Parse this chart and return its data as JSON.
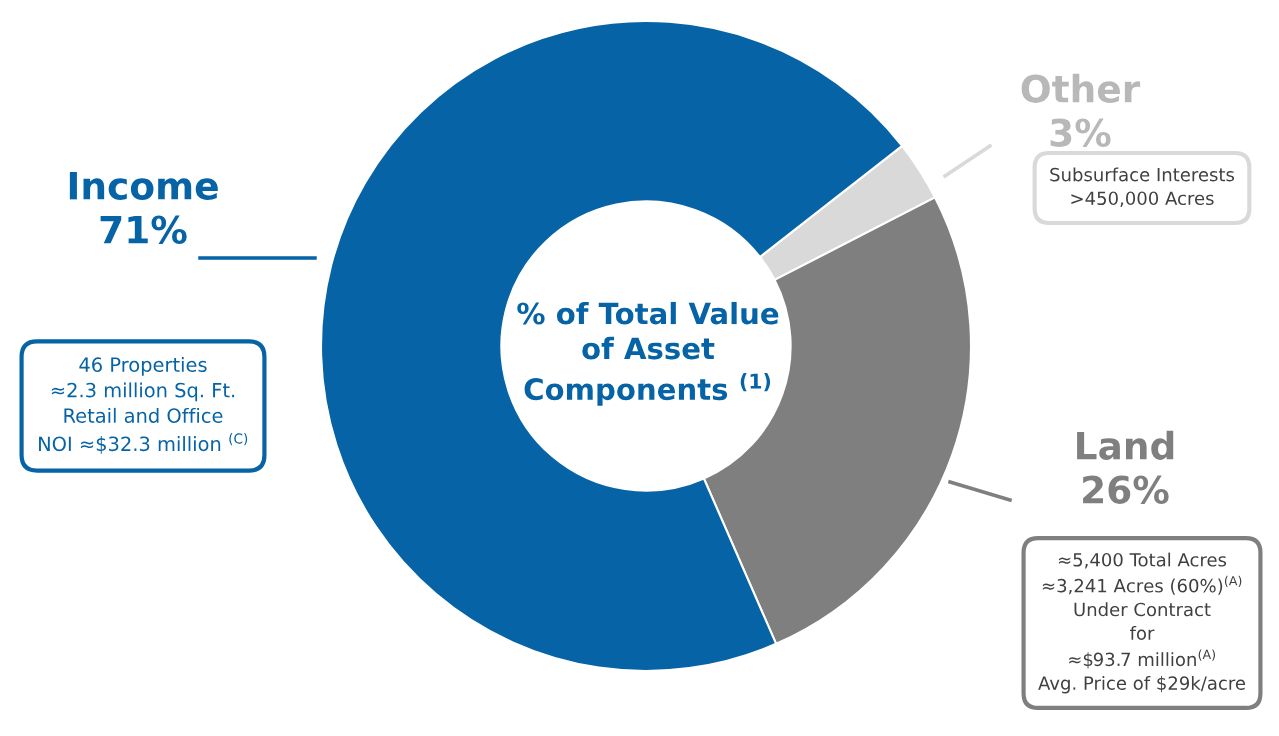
{
  "chart_data": {
    "type": "donut",
    "categories": [
      "Other",
      "Land",
      "Income"
    ],
    "values": [
      3,
      26,
      71
    ],
    "value_labels": [
      "3%",
      "26%",
      "71%"
    ],
    "colors": [
      "#d9d9d9",
      "#7f7f7f",
      "#0563a6"
    ],
    "annotations": [
      "% of Total Value\nof Asset\nComponents $^{(1)}$",
      "Subsurface Interests\n>450,000 Acres",
      "≈5,400 Total Acres\n≈3,241 Acres (60%)$^{(A)}$\nUnder Contract\nfor\n≈$93.7 million$^{(A)}$\nAvg. Price of $29k/acre",
      "46 Properties\n≈2.3 million Sq. Ft.\nRetail and Office\nNOI ≈$32.3 million $^{(C)}$"
    ],
    "legend": false
  }
}
